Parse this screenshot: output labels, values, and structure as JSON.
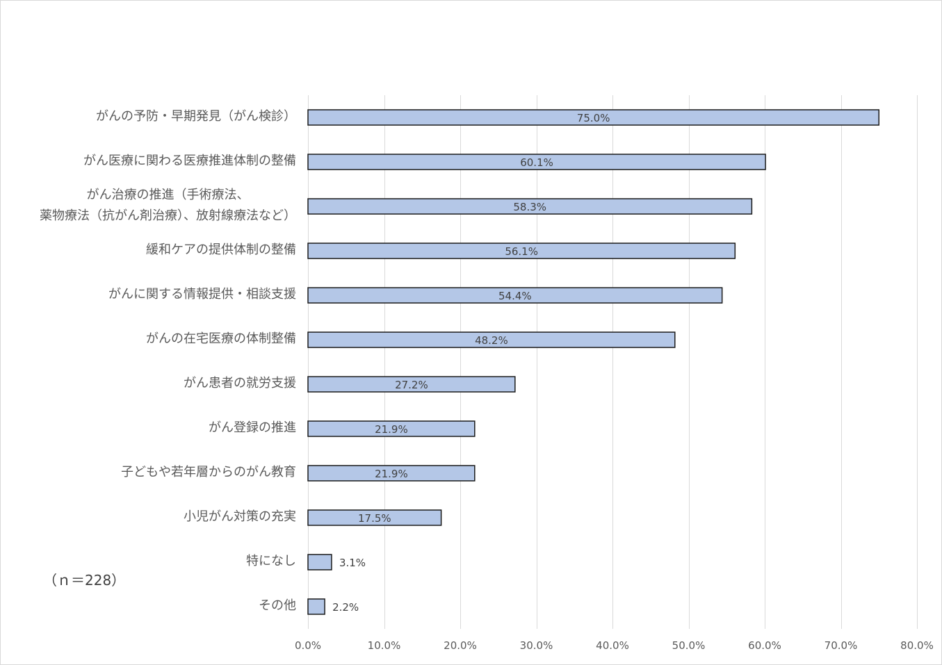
{
  "chart_data": {
    "type": "bar",
    "orientation": "horizontal",
    "categories": [
      "がんの予防・早期発見（がん検診）",
      "がん医療に関わる医療推進体制の整備",
      "がん治療の推進（手術療法、\n薬物療法（抗がん剤治療）、放射線療法など）",
      "緩和ケアの提供体制の整備",
      "がんに関する情報提供・相談支援",
      "がんの在宅医療の体制整備",
      "がん患者の就労支援",
      "がん登録の推進",
      "子どもや若年層からのがん教育",
      "小児がん対策の充実",
      "特になし",
      "その他"
    ],
    "values": [
      75.0,
      60.1,
      58.3,
      56.1,
      54.4,
      48.2,
      27.2,
      21.9,
      21.9,
      17.5,
      3.1,
      2.2
    ],
    "data_labels": [
      "75.0%",
      "60.1%",
      "58.3%",
      "56.1%",
      "54.4%",
      "48.2%",
      "27.2%",
      "21.9%",
      "21.9%",
      "17.5%",
      "3.1%",
      "2.2%"
    ],
    "xlim": [
      0,
      80
    ],
    "x_ticks": [
      0,
      10,
      20,
      30,
      40,
      50,
      60,
      70,
      80
    ],
    "x_tick_labels": [
      "0.0%",
      "10.0%",
      "20.0%",
      "30.0%",
      "40.0%",
      "50.0%",
      "60.0%",
      "70.0%",
      "80.0%"
    ],
    "grid": true,
    "note": "（ｎ＝228）",
    "colors": {
      "bar_fill": "#B4C7E7",
      "bar_edge": "#1A1A1A",
      "gridline": "#D9D9D9"
    }
  }
}
